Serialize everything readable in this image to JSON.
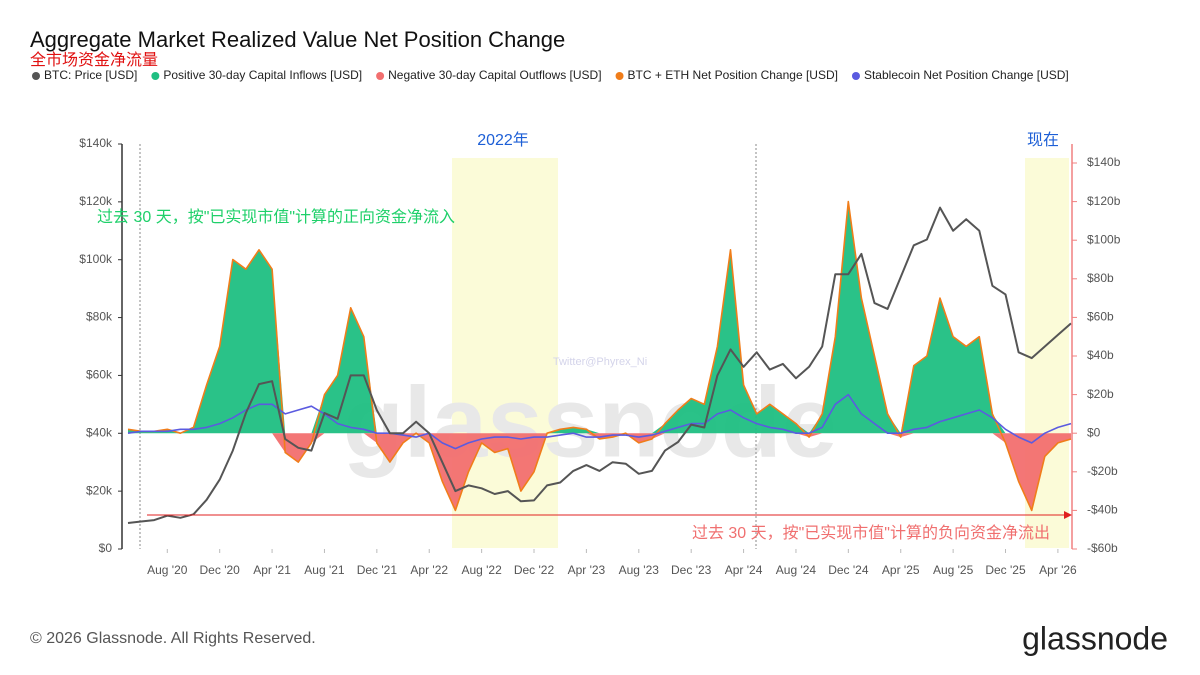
{
  "chart_data": {
    "type": "area",
    "title": "Aggregate Market Realized Value Net Position Change",
    "subtitle": "全市场资金净流量",
    "annotations": [
      "2022年",
      "现在",
      "过去 30 天，按\"已实现市值\"计算的正向资金净流入",
      "过去 30 天，按\"已实现市值\"计算的负向资金净流出"
    ],
    "watermark": "glassnode",
    "credit": "Twitter@Phyrex_Ni",
    "footer": "© 2026 Glassnode. All Rights Reserved.",
    "logo": "glassnode",
    "x": [
      "2020-05",
      "2020-06",
      "2020-07",
      "2020-08",
      "2020-09",
      "2020-10",
      "2020-11",
      "2020-12",
      "2021-01",
      "2021-02",
      "2021-03",
      "2021-04",
      "2021-05",
      "2021-06",
      "2021-07",
      "2021-08",
      "2021-09",
      "2021-10",
      "2021-11",
      "2021-12",
      "2022-01",
      "2022-02",
      "2022-03",
      "2022-04",
      "2022-05",
      "2022-06",
      "2022-07",
      "2022-08",
      "2022-09",
      "2022-10",
      "2022-11",
      "2022-12",
      "2023-01",
      "2023-02",
      "2023-03",
      "2023-04",
      "2023-05",
      "2023-06",
      "2023-07",
      "2023-08",
      "2023-09",
      "2023-10",
      "2023-11",
      "2023-12",
      "2024-01",
      "2024-02",
      "2024-03",
      "2024-04",
      "2024-05",
      "2024-06",
      "2024-07",
      "2024-08",
      "2024-09",
      "2024-10",
      "2024-11",
      "2024-12",
      "2025-01",
      "2025-02",
      "2025-03",
      "2025-04",
      "2025-05",
      "2025-06",
      "2025-07",
      "2025-08",
      "2025-09",
      "2025-10",
      "2025-11",
      "2025-12",
      "2026-01",
      "2026-02",
      "2026-03",
      "2026-04",
      "2026-05"
    ],
    "series": [
      {
        "name": "BTC: Price [USD]",
        "color": "#555555",
        "axis": "y",
        "values": [
          9,
          9.5,
          10,
          11.5,
          10.8,
          12,
          17,
          24,
          34,
          47,
          57,
          58,
          38,
          35,
          34,
          47,
          45,
          60,
          60,
          48,
          40,
          40,
          44,
          40,
          30,
          20,
          22,
          21,
          19,
          20,
          16.5,
          16.8,
          22,
          23,
          27,
          29,
          27,
          30,
          29.5,
          26,
          27,
          34,
          37,
          43,
          42,
          60,
          69,
          63,
          68,
          62,
          64,
          59,
          63,
          70,
          95,
          95,
          102,
          85,
          83,
          94,
          105,
          107,
          118,
          110,
          114,
          110,
          91,
          88,
          68,
          66,
          70,
          74,
          78
        ]
      },
      {
        "name": "Positive 30-day Capital Inflows [USD]",
        "color": "#1fbf82",
        "axis": "y2",
        "values": [
          2,
          1,
          1,
          2,
          0,
          3,
          25,
          45,
          90,
          85,
          95,
          85,
          0,
          0,
          0,
          20,
          30,
          65,
          50,
          0,
          0,
          0,
          0,
          0,
          0,
          0,
          0,
          0,
          0,
          0,
          0,
          0,
          0,
          2,
          3,
          2,
          0,
          0,
          0,
          0,
          0,
          5,
          12,
          18,
          15,
          45,
          95,
          25,
          10,
          15,
          10,
          5,
          0,
          10,
          50,
          120,
          70,
          40,
          10,
          0,
          35,
          40,
          70,
          50,
          45,
          50,
          10,
          0,
          0,
          0,
          0,
          0,
          0
        ]
      },
      {
        "name": "Negative 30-day Capital Outflows [USD]",
        "color": "#f26f6f",
        "axis": "y2",
        "values": [
          0,
          0,
          0,
          0,
          0,
          0,
          0,
          0,
          0,
          0,
          0,
          0,
          -10,
          -15,
          -5,
          0,
          0,
          0,
          0,
          -5,
          -15,
          -5,
          0,
          -5,
          -25,
          -40,
          -20,
          -5,
          -10,
          -8,
          -30,
          -20,
          0,
          0,
          0,
          0,
          -3,
          -2,
          0,
          -5,
          -3,
          0,
          0,
          0,
          0,
          0,
          0,
          0,
          0,
          0,
          0,
          0,
          -2,
          0,
          0,
          0,
          0,
          0,
          0,
          -2,
          0,
          0,
          0,
          0,
          0,
          0,
          0,
          -5,
          -25,
          -40,
          -12,
          -5,
          -3
        ]
      },
      {
        "name": "BTC + ETH Net Position Change [USD]",
        "color": "#f07d1a",
        "axis": "y2",
        "values": [
          2,
          1,
          1,
          2,
          0,
          3,
          25,
          45,
          90,
          85,
          95,
          85,
          -10,
          -15,
          -5,
          20,
          30,
          65,
          50,
          -5,
          -15,
          -5,
          0,
          -5,
          -25,
          -40,
          -20,
          -5,
          -10,
          -8,
          -30,
          -20,
          0,
          2,
          3,
          2,
          -3,
          -2,
          0,
          -5,
          -3,
          5,
          12,
          18,
          15,
          45,
          95,
          25,
          10,
          15,
          10,
          5,
          -2,
          10,
          50,
          120,
          70,
          40,
          10,
          -2,
          35,
          40,
          70,
          50,
          45,
          50,
          10,
          -5,
          -25,
          -40,
          -12,
          -5,
          -3
        ]
      },
      {
        "name": "Stablecoin Net Position Change [USD]",
        "color": "#5b5be0",
        "axis": "y2",
        "values": [
          0,
          1,
          1,
          1,
          2,
          2,
          3,
          5,
          8,
          12,
          15,
          15,
          10,
          12,
          14,
          10,
          5,
          3,
          2,
          0,
          0,
          -1,
          -2,
          0,
          -5,
          -8,
          -5,
          -3,
          -2,
          -2,
          -3,
          -2,
          -2,
          -1,
          0,
          -2,
          -2,
          -1,
          -1,
          -2,
          -1,
          1,
          3,
          5,
          5,
          10,
          12,
          8,
          5,
          3,
          2,
          0,
          0,
          3,
          15,
          20,
          10,
          5,
          0,
          0,
          2,
          3,
          6,
          8,
          10,
          12,
          8,
          2,
          -2,
          -5,
          0,
          3,
          5
        ]
      }
    ],
    "ylim": [
      0,
      140
    ],
    "yticks": [
      {
        "value": 0,
        "label": "$0"
      },
      {
        "value": 20,
        "label": "$20k"
      },
      {
        "value": 40,
        "label": "$40k"
      },
      {
        "value": 60,
        "label": "$60k"
      },
      {
        "value": 80,
        "label": "$80k"
      },
      {
        "value": 100,
        "label": "$100k"
      },
      {
        "value": 120,
        "label": "$120k"
      },
      {
        "value": 140,
        "label": "$140k"
      }
    ],
    "y2lim": [
      -60,
      140
    ],
    "y2ticks": [
      {
        "value": -60,
        "label": "-$60b"
      },
      {
        "value": -40,
        "label": "-$40b"
      },
      {
        "value": -20,
        "label": "-$20b"
      },
      {
        "value": 0,
        "label": "$0"
      },
      {
        "value": 20,
        "label": "$20b"
      },
      {
        "value": 40,
        "label": "$40b"
      },
      {
        "value": 60,
        "label": "$60b"
      },
      {
        "value": 80,
        "label": "$80b"
      },
      {
        "value": 100,
        "label": "$100b"
      },
      {
        "value": 120,
        "label": "$120b"
      },
      {
        "value": 140,
        "label": "$140b"
      }
    ],
    "xticks": [
      {
        "value": "2020-08",
        "label": "Aug '20"
      },
      {
        "value": "2020-12",
        "label": "Dec '20"
      },
      {
        "value": "2021-04",
        "label": "Apr '21"
      },
      {
        "value": "2021-08",
        "label": "Aug '21"
      },
      {
        "value": "2021-12",
        "label": "Dec '21"
      },
      {
        "value": "2022-04",
        "label": "Apr '22"
      },
      {
        "value": "2022-08",
        "label": "Aug '22"
      },
      {
        "value": "2022-12",
        "label": "Dec '22"
      },
      {
        "value": "2023-04",
        "label": "Apr '23"
      },
      {
        "value": "2023-08",
        "label": "Aug '23"
      },
      {
        "value": "2023-12",
        "label": "Dec '23"
      },
      {
        "value": "2024-04",
        "label": "Apr '24"
      },
      {
        "value": "2024-08",
        "label": "Aug '24"
      },
      {
        "value": "2024-12",
        "label": "Dec '24"
      },
      {
        "value": "2025-04",
        "label": "Apr '25"
      },
      {
        "value": "2025-08",
        "label": "Aug '25"
      },
      {
        "value": "2025-12",
        "label": "Dec '25"
      },
      {
        "value": "2026-04",
        "label": "Apr '26"
      }
    ],
    "grid": true
  }
}
